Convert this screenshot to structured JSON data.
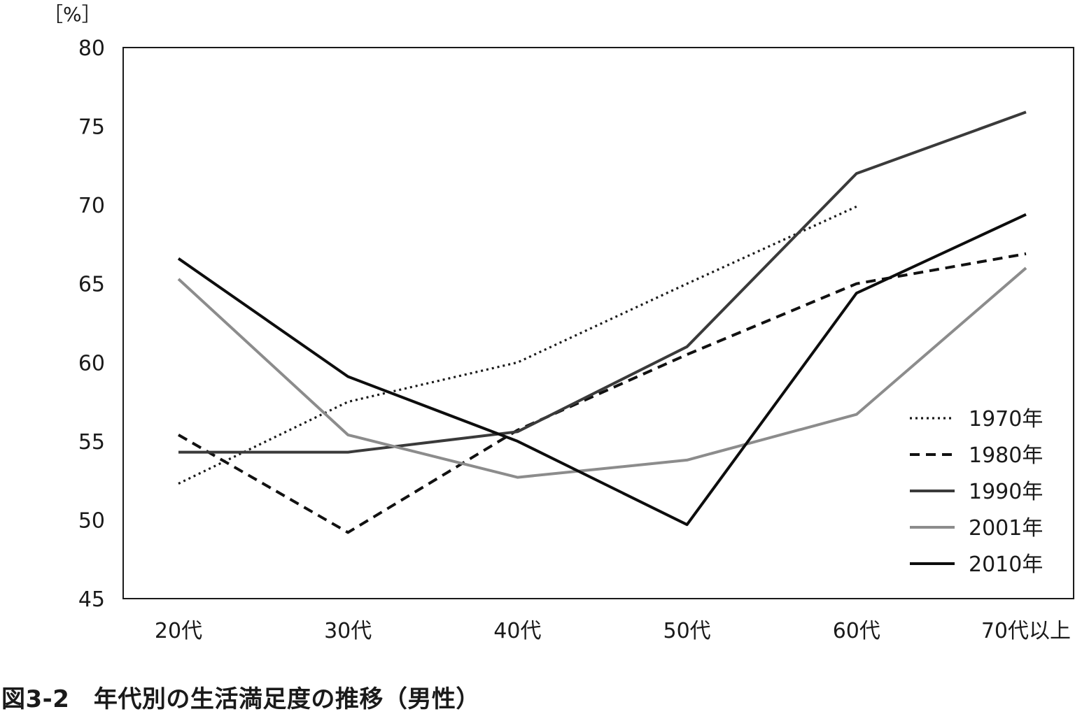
{
  "caption": "図3-2　年代別の生活満足度の推移（男性）",
  "chart_data": {
    "type": "line",
    "title": "図3-2　年代別の生活満足度の推移（男性）",
    "unit_label": "［%］",
    "xlabel": "",
    "ylabel": "",
    "categories": [
      "20代",
      "30代",
      "40代",
      "50代",
      "60代",
      "70代以上"
    ],
    "ylim": [
      45,
      80
    ],
    "yticks": [
      45,
      50,
      55,
      60,
      65,
      70,
      75,
      80
    ],
    "grid": false,
    "legend_position": "bottom-right",
    "series": [
      {
        "name": "1970年",
        "style": "dotted",
        "color": "#1a1a1a",
        "values": [
          52.3,
          57.5,
          60.0,
          65.0,
          69.9,
          null
        ]
      },
      {
        "name": "1980年",
        "style": "dashed",
        "color": "#111111",
        "values": [
          55.4,
          49.2,
          55.7,
          60.5,
          65.0,
          66.9
        ]
      },
      {
        "name": "1990年",
        "style": "solid",
        "color": "#3a3a3a",
        "values": [
          54.3,
          54.3,
          55.6,
          61.0,
          72.0,
          75.9
        ]
      },
      {
        "name": "2001年",
        "style": "solid",
        "color": "#8c8c8c",
        "values": [
          65.3,
          55.4,
          52.7,
          53.8,
          56.7,
          66.0
        ]
      },
      {
        "name": "2010年",
        "style": "solid",
        "color": "#0d0d0d",
        "values": [
          66.6,
          59.1,
          55.0,
          49.7,
          64.4,
          69.4
        ]
      }
    ]
  }
}
